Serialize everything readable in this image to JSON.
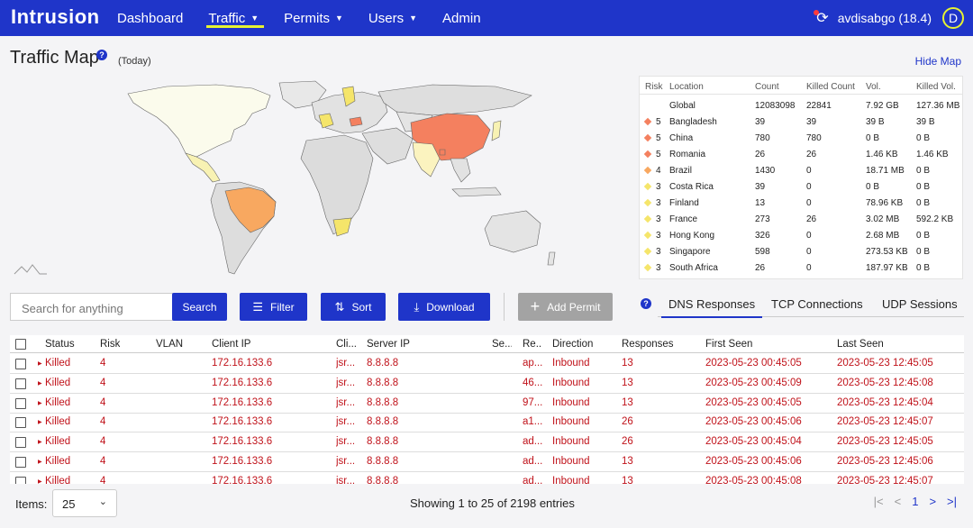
{
  "nav": {
    "brand": "Intrusion",
    "items": [
      {
        "label": "Dashboard",
        "caret": false
      },
      {
        "label": "Traffic",
        "caret": true
      },
      {
        "label": "Permits",
        "caret": true
      },
      {
        "label": "Users",
        "caret": true
      },
      {
        "label": "Admin",
        "caret": false
      }
    ],
    "user_label": "avdisabgo (18.4)",
    "avatar_initial": "D"
  },
  "page": {
    "title": "Traffic Map",
    "help": "?",
    "period": "(Today)",
    "hide_map": "Hide Map"
  },
  "colors": {
    "nav_blue": "#1f35c9",
    "risk5": "#f4805f",
    "risk4": "#f8a860",
    "risk3": "#f5e56a",
    "risk_row_red": "#c0121a"
  },
  "risk_table": {
    "headers": [
      "Risk",
      "Location",
      "Count",
      "Killed Count",
      "Vol.",
      "Killed Vol."
    ],
    "rows": [
      {
        "risk": "",
        "location": "Global",
        "count": "12083098",
        "killed_count": "22841",
        "vol": "7.92 GB",
        "killed_vol": "127.36 MB",
        "color": ""
      },
      {
        "risk": "5",
        "location": "Bangladesh",
        "count": "39",
        "killed_count": "39",
        "vol": "39 B",
        "killed_vol": "39 B",
        "color": "#f4805f"
      },
      {
        "risk": "5",
        "location": "China",
        "count": "780",
        "killed_count": "780",
        "vol": "0 B",
        "killed_vol": "0 B",
        "color": "#f4805f"
      },
      {
        "risk": "5",
        "location": "Romania",
        "count": "26",
        "killed_count": "26",
        "vol": "1.46 KB",
        "killed_vol": "1.46 KB",
        "color": "#f4805f"
      },
      {
        "risk": "4",
        "location": "Brazil",
        "count": "1430",
        "killed_count": "0",
        "vol": "18.71 MB",
        "killed_vol": "0 B",
        "color": "#f8a860"
      },
      {
        "risk": "3",
        "location": "Costa Rica",
        "count": "39",
        "killed_count": "0",
        "vol": "0 B",
        "killed_vol": "0 B",
        "color": "#f5e56a"
      },
      {
        "risk": "3",
        "location": "Finland",
        "count": "13",
        "killed_count": "0",
        "vol": "78.96 KB",
        "killed_vol": "0 B",
        "color": "#f5e56a"
      },
      {
        "risk": "3",
        "location": "France",
        "count": "273",
        "killed_count": "26",
        "vol": "3.02 MB",
        "killed_vol": "592.2 KB",
        "color": "#f5e56a"
      },
      {
        "risk": "3",
        "location": "Hong Kong",
        "count": "326",
        "killed_count": "0",
        "vol": "2.68 MB",
        "killed_vol": "0 B",
        "color": "#f5e56a"
      },
      {
        "risk": "3",
        "location": "Singapore",
        "count": "598",
        "killed_count": "0",
        "vol": "273.53 KB",
        "killed_vol": "0 B",
        "color": "#f5e56a"
      },
      {
        "risk": "3",
        "location": "South Africa",
        "count": "26",
        "killed_count": "0",
        "vol": "187.97 KB",
        "killed_vol": "0 B",
        "color": "#f5e56a"
      }
    ]
  },
  "toolbar": {
    "search_placeholder": "Search for anything",
    "search_label": "Search",
    "filter_label": "Filter",
    "sort_label": "Sort",
    "download_label": "Download",
    "add_permit_label": "Add Permit"
  },
  "tabs": {
    "help": "?",
    "items": [
      "DNS Responses",
      "TCP Connections",
      "UDP Sessions"
    ],
    "active": 0
  },
  "grid": {
    "headers": [
      "Status",
      "Risk",
      "VLAN",
      "Client IP",
      "Cli...",
      "Server IP",
      "Se...",
      "Re...",
      "Direction",
      "Responses",
      "First Seen",
      "Last Seen"
    ],
    "rows": [
      {
        "status": "Killed",
        "risk": "4",
        "vlan": "",
        "client_ip": "172.16.133.6",
        "cli": "jsr...",
        "server_ip": "8.8.8.8",
        "se": "",
        "re": "ap...",
        "direction": "Inbound",
        "responses": "13",
        "first_seen": "2023-05-23 00:45:05",
        "last_seen": "2023-05-23 12:45:05"
      },
      {
        "status": "Killed",
        "risk": "4",
        "vlan": "",
        "client_ip": "172.16.133.6",
        "cli": "jsr...",
        "server_ip": "8.8.8.8",
        "se": "",
        "re": "46...",
        "direction": "Inbound",
        "responses": "13",
        "first_seen": "2023-05-23 00:45:09",
        "last_seen": "2023-05-23 12:45:08"
      },
      {
        "status": "Killed",
        "risk": "4",
        "vlan": "",
        "client_ip": "172.16.133.6",
        "cli": "jsr...",
        "server_ip": "8.8.8.8",
        "se": "",
        "re": "97...",
        "direction": "Inbound",
        "responses": "13",
        "first_seen": "2023-05-23 00:45:05",
        "last_seen": "2023-05-23 12:45:04"
      },
      {
        "status": "Killed",
        "risk": "4",
        "vlan": "",
        "client_ip": "172.16.133.6",
        "cli": "jsr...",
        "server_ip": "8.8.8.8",
        "se": "",
        "re": "a1...",
        "direction": "Inbound",
        "responses": "26",
        "first_seen": "2023-05-23 00:45:06",
        "last_seen": "2023-05-23 12:45:07"
      },
      {
        "status": "Killed",
        "risk": "4",
        "vlan": "",
        "client_ip": "172.16.133.6",
        "cli": "jsr...",
        "server_ip": "8.8.8.8",
        "se": "",
        "re": "ad...",
        "direction": "Inbound",
        "responses": "26",
        "first_seen": "2023-05-23 00:45:04",
        "last_seen": "2023-05-23 12:45:05"
      },
      {
        "status": "Killed",
        "risk": "4",
        "vlan": "",
        "client_ip": "172.16.133.6",
        "cli": "jsr...",
        "server_ip": "8.8.8.8",
        "se": "",
        "re": "ad...",
        "direction": "Inbound",
        "responses": "13",
        "first_seen": "2023-05-23 00:45:06",
        "last_seen": "2023-05-23 12:45:06"
      },
      {
        "status": "Killed",
        "risk": "4",
        "vlan": "",
        "client_ip": "172.16.133.6",
        "cli": "jsr...",
        "server_ip": "8.8.8.8",
        "se": "",
        "re": "ad...",
        "direction": "Inbound",
        "responses": "13",
        "first_seen": "2023-05-23 00:45:08",
        "last_seen": "2023-05-23 12:45:07"
      }
    ]
  },
  "footer": {
    "items_label": "Items:",
    "items_value": "25",
    "showing": "Showing 1 to 25 of 2198 entries",
    "current_page": "1"
  }
}
